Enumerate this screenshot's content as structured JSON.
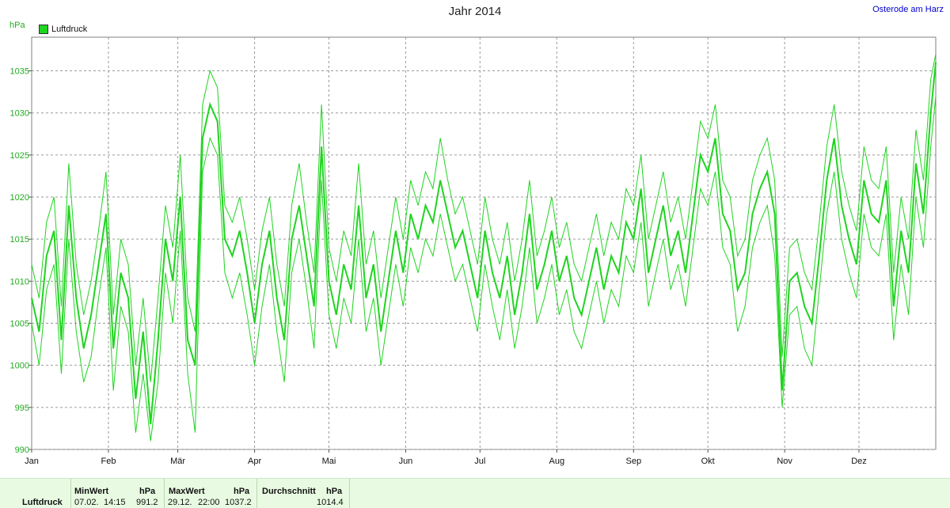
{
  "title": "Jahr 2014",
  "location": "Osterode am Harz",
  "unit": "hPa",
  "legend": {
    "label": "Luftdruck",
    "color": "#1fd41f"
  },
  "stats": {
    "row_label": "Luftdruck",
    "min_header": "MinWert",
    "max_header": "MaxWert",
    "avg_header": "Durchschnitt",
    "unit": "hPa",
    "min_date": "07.02.",
    "min_time": "14:15",
    "min_value": "991.2",
    "max_date": "29.12.",
    "max_time": "22:00",
    "max_value": "1037.2",
    "avg_value": "1014.4"
  },
  "chart_data": {
    "type": "line",
    "title": "Jahr 2014",
    "xlabel": "",
    "ylabel": "hPa",
    "ylim": [
      990,
      1039
    ],
    "yticks": [
      990,
      995,
      1000,
      1005,
      1010,
      1015,
      1020,
      1025,
      1030,
      1035
    ],
    "xlim": [
      0,
      365
    ],
    "xticks": [
      {
        "day": 0,
        "label": "Jan"
      },
      {
        "day": 31,
        "label": "Feb"
      },
      {
        "day": 59,
        "label": "Mär"
      },
      {
        "day": 90,
        "label": "Apr"
      },
      {
        "day": 120,
        "label": "Mai"
      },
      {
        "day": 151,
        "label": "Jun"
      },
      {
        "day": 181,
        "label": "Jul"
      },
      {
        "day": 212,
        "label": "Aug"
      },
      {
        "day": 243,
        "label": "Sep"
      },
      {
        "day": 273,
        "label": "Okt"
      },
      {
        "day": 304,
        "label": "Nov"
      },
      {
        "day": 334,
        "label": "Dez"
      }
    ],
    "grid": true,
    "legend_position": "top-left",
    "series": [
      {
        "name": "Luftdruck",
        "color": "#1fd41f",
        "x": [
          0,
          3,
          6,
          9,
          12,
          15,
          18,
          21,
          24,
          27,
          30,
          33,
          36,
          39,
          42,
          45,
          48,
          51,
          54,
          57,
          60,
          63,
          66,
          69,
          72,
          75,
          78,
          81,
          84,
          87,
          90,
          93,
          96,
          99,
          102,
          105,
          108,
          111,
          114,
          117,
          120,
          123,
          126,
          129,
          132,
          135,
          138,
          141,
          144,
          147,
          150,
          153,
          156,
          159,
          162,
          165,
          168,
          171,
          174,
          177,
          180,
          183,
          186,
          189,
          192,
          195,
          198,
          201,
          204,
          207,
          210,
          213,
          216,
          219,
          222,
          225,
          228,
          231,
          234,
          237,
          240,
          243,
          246,
          249,
          252,
          255,
          258,
          261,
          264,
          267,
          270,
          273,
          276,
          279,
          282,
          285,
          288,
          291,
          294,
          297,
          300,
          303,
          306,
          309,
          312,
          315,
          318,
          321,
          324,
          327,
          330,
          333,
          336,
          339,
          342,
          345,
          348,
          351,
          354,
          357,
          360,
          363,
          365
        ],
        "mean": [
          1008,
          1004,
          1013,
          1016,
          1003,
          1019,
          1008,
          1002,
          1006,
          1012,
          1018,
          1002,
          1011,
          1008,
          996,
          1004,
          993,
          1003,
          1015,
          1010,
          1020,
          1003,
          1000,
          1027,
          1031,
          1029,
          1015,
          1013,
          1016,
          1011,
          1005,
          1012,
          1016,
          1008,
          1003,
          1015,
          1019,
          1013,
          1007,
          1026,
          1010,
          1006,
          1012,
          1009,
          1019,
          1008,
          1012,
          1004,
          1010,
          1016,
          1011,
          1018,
          1015,
          1019,
          1017,
          1022,
          1018,
          1014,
          1016,
          1012,
          1008,
          1016,
          1011,
          1008,
          1013,
          1006,
          1011,
          1018,
          1009,
          1012,
          1016,
          1010,
          1013,
          1008,
          1006,
          1010,
          1014,
          1009,
          1013,
          1011,
          1017,
          1015,
          1021,
          1011,
          1015,
          1019,
          1013,
          1016,
          1011,
          1018,
          1025,
          1023,
          1027,
          1018,
          1016,
          1009,
          1011,
          1018,
          1021,
          1023,
          1018,
          997,
          1010,
          1011,
          1007,
          1005,
          1013,
          1022,
          1027,
          1019,
          1015,
          1012,
          1022,
          1018,
          1017,
          1022,
          1007,
          1016,
          1011,
          1024,
          1018,
          1030,
          1036
        ],
        "min": [
          1005,
          1000,
          1009,
          1012,
          999,
          1015,
          1004,
          998,
          1001,
          1008,
          1014,
          997,
          1007,
          1004,
          992,
          999,
          991,
          998,
          1011,
          1005,
          1016,
          999,
          992,
          1023,
          1027,
          1025,
          1011,
          1008,
          1011,
          1006,
          1000,
          1007,
          1012,
          1004,
          998,
          1011,
          1015,
          1009,
          1002,
          1022,
          1006,
          1002,
          1008,
          1005,
          1015,
          1004,
          1008,
          1000,
          1006,
          1012,
          1007,
          1014,
          1011,
          1015,
          1013,
          1018,
          1014,
          1010,
          1012,
          1008,
          1004,
          1012,
          1007,
          1003,
          1009,
          1002,
          1007,
          1014,
          1005,
          1008,
          1012,
          1006,
          1009,
          1004,
          1002,
          1006,
          1010,
          1005,
          1009,
          1007,
          1013,
          1011,
          1017,
          1007,
          1011,
          1015,
          1009,
          1012,
          1007,
          1014,
          1021,
          1019,
          1023,
          1014,
          1012,
          1004,
          1007,
          1014,
          1017,
          1019,
          1013,
          995,
          1006,
          1007,
          1002,
          1000,
          1009,
          1018,
          1023,
          1015,
          1011,
          1008,
          1018,
          1014,
          1013,
          1018,
          1003,
          1012,
          1006,
          1020,
          1014,
          1026,
          1032
        ],
        "max": [
          1012,
          1008,
          1017,
          1020,
          1007,
          1024,
          1012,
          1006,
          1010,
          1016,
          1023,
          1006,
          1015,
          1012,
          1000,
          1008,
          998,
          1008,
          1019,
          1014,
          1025,
          1008,
          1004,
          1031,
          1035,
          1033,
          1019,
          1017,
          1020,
          1015,
          1009,
          1016,
          1020,
          1012,
          1007,
          1019,
          1024,
          1017,
          1011,
          1031,
          1014,
          1010,
          1016,
          1013,
          1024,
          1012,
          1016,
          1008,
          1014,
          1020,
          1015,
          1022,
          1019,
          1023,
          1021,
          1027,
          1022,
          1018,
          1020,
          1016,
          1012,
          1020,
          1015,
          1012,
          1017,
          1010,
          1015,
          1022,
          1013,
          1016,
          1020,
          1014,
          1017,
          1012,
          1010,
          1014,
          1018,
          1013,
          1017,
          1015,
          1021,
          1019,
          1025,
          1015,
          1019,
          1023,
          1017,
          1020,
          1015,
          1022,
          1029,
          1027,
          1031,
          1022,
          1020,
          1013,
          1015,
          1022,
          1025,
          1027,
          1022,
          1001,
          1014,
          1015,
          1011,
          1009,
          1017,
          1026,
          1031,
          1023,
          1019,
          1016,
          1026,
          1022,
          1021,
          1026,
          1011,
          1020,
          1015,
          1028,
          1022,
          1034,
          1037
        ]
      }
    ]
  }
}
